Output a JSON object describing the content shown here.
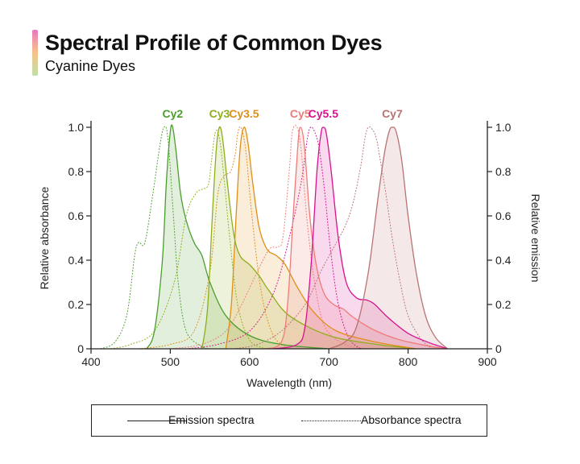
{
  "header": {
    "title": "Spectral Profile of Common Dyes",
    "subtitle": "Cyanine Dyes"
  },
  "legend": {
    "emission_label": "Emission spectra",
    "absorbance_label": "Absorbance spectra"
  },
  "colors": {
    "title_bar_gradient": [
      "#e879c0",
      "#f7c38a",
      "#bfe0a8"
    ]
  },
  "chart_data": {
    "type": "line",
    "title": "Spectral Profile of Common Dyes",
    "subtitle": "Cyanine Dyes",
    "xlabel": "Wavelength (nm)",
    "ylabel": "Relative absorbance",
    "y2label": "Relative emission",
    "xlim": [
      400,
      900
    ],
    "ylim": [
      0,
      1.0
    ],
    "x_ticks": [
      400,
      500,
      600,
      700,
      800,
      900
    ],
    "y_ticks": [
      0,
      0.2,
      0.4,
      0.6,
      0.8,
      1.0
    ],
    "y_tick_labels": [
      "0",
      "0.2",
      "0.4",
      "0.6",
      "0.8",
      "1.0"
    ],
    "grid": false,
    "legend_position": "bottom",
    "series": [
      {
        "name": "Cy2",
        "color": "#4a9e2e",
        "absorbance": [
          [
            412,
            0
          ],
          [
            430,
            0.03
          ],
          [
            445,
            0.15
          ],
          [
            455,
            0.42
          ],
          [
            460,
            0.48
          ],
          [
            468,
            0.48
          ],
          [
            478,
            0.7
          ],
          [
            487,
            0.92
          ],
          [
            492,
            1.0
          ],
          [
            497,
            0.95
          ],
          [
            504,
            0.6
          ],
          [
            510,
            0.3
          ],
          [
            520,
            0.08
          ],
          [
            540,
            0.01
          ],
          [
            550,
            0
          ]
        ],
        "emission": [
          [
            470,
            0
          ],
          [
            480,
            0.08
          ],
          [
            490,
            0.4
          ],
          [
            495,
            0.75
          ],
          [
            500,
            0.98
          ],
          [
            503,
            1.0
          ],
          [
            507,
            0.9
          ],
          [
            513,
            0.7
          ],
          [
            520,
            0.58
          ],
          [
            530,
            0.48
          ],
          [
            540,
            0.42
          ],
          [
            550,
            0.3
          ],
          [
            570,
            0.15
          ],
          [
            600,
            0.06
          ],
          [
            640,
            0.02
          ],
          [
            700,
            0
          ]
        ]
      },
      {
        "name": "Cy3",
        "color": "#8fae1b",
        "absorbance": [
          [
            425,
            0
          ],
          [
            450,
            0.02
          ],
          [
            480,
            0.08
          ],
          [
            505,
            0.3
          ],
          [
            520,
            0.6
          ],
          [
            532,
            0.7
          ],
          [
            540,
            0.72
          ],
          [
            548,
            0.74
          ],
          [
            552,
            0.85
          ],
          [
            557,
            0.98
          ],
          [
            562,
            0.95
          ],
          [
            567,
            0.8
          ],
          [
            575,
            0.5
          ],
          [
            585,
            0.2
          ],
          [
            600,
            0.04
          ],
          [
            620,
            0
          ]
        ],
        "emission": [
          [
            540,
            0
          ],
          [
            547,
            0.18
          ],
          [
            553,
            0.6
          ],
          [
            558,
            0.9
          ],
          [
            562,
            1.0
          ],
          [
            566,
            0.95
          ],
          [
            572,
            0.75
          ],
          [
            580,
            0.52
          ],
          [
            588,
            0.42
          ],
          [
            600,
            0.38
          ],
          [
            612,
            0.33
          ],
          [
            625,
            0.26
          ],
          [
            650,
            0.15
          ],
          [
            700,
            0.06
          ],
          [
            760,
            0.02
          ],
          [
            810,
            0
          ]
        ]
      },
      {
        "name": "Cy3.5",
        "color": "#de8f17",
        "absorbance": [
          [
            460,
            0
          ],
          [
            500,
            0.02
          ],
          [
            530,
            0.08
          ],
          [
            550,
            0.35
          ],
          [
            560,
            0.7
          ],
          [
            568,
            0.78
          ],
          [
            576,
            0.8
          ],
          [
            582,
            0.88
          ],
          [
            585,
            0.97
          ],
          [
            589,
            1.0
          ],
          [
            595,
            0.9
          ],
          [
            603,
            0.6
          ],
          [
            615,
            0.25
          ],
          [
            630,
            0.06
          ],
          [
            650,
            0
          ]
        ],
        "emission": [
          [
            570,
            0
          ],
          [
            577,
            0.2
          ],
          [
            583,
            0.6
          ],
          [
            588,
            0.9
          ],
          [
            593,
            1.0
          ],
          [
            598,
            0.93
          ],
          [
            604,
            0.75
          ],
          [
            612,
            0.55
          ],
          [
            622,
            0.45
          ],
          [
            634,
            0.42
          ],
          [
            645,
            0.38
          ],
          [
            660,
            0.28
          ],
          [
            680,
            0.17
          ],
          [
            710,
            0.08
          ],
          [
            760,
            0.03
          ],
          [
            810,
            0
          ]
        ]
      },
      {
        "name": "Cy5",
        "color": "#ef7b79",
        "absorbance": [
          [
            500,
            0
          ],
          [
            540,
            0.02
          ],
          [
            570,
            0.08
          ],
          [
            590,
            0.2
          ],
          [
            610,
            0.35
          ],
          [
            625,
            0.45
          ],
          [
            635,
            0.46
          ],
          [
            642,
            0.5
          ],
          [
            650,
            0.8
          ],
          [
            654,
            0.98
          ],
          [
            660,
            1.0
          ],
          [
            665,
            0.9
          ],
          [
            672,
            0.6
          ],
          [
            682,
            0.3
          ],
          [
            695,
            0.1
          ],
          [
            720,
            0.02
          ],
          [
            750,
            0
          ]
        ],
        "emission": [
          [
            620,
            0
          ],
          [
            640,
            0.03
          ],
          [
            648,
            0.2
          ],
          [
            655,
            0.6
          ],
          [
            661,
            0.92
          ],
          [
            664,
            1.0
          ],
          [
            669,
            0.92
          ],
          [
            676,
            0.6
          ],
          [
            684,
            0.38
          ],
          [
            694,
            0.25
          ],
          [
            706,
            0.2
          ],
          [
            718,
            0.18
          ],
          [
            728,
            0.15
          ],
          [
            740,
            0.12
          ],
          [
            760,
            0.08
          ],
          [
            790,
            0.04
          ],
          [
            830,
            0.01
          ],
          [
            850,
            0
          ]
        ]
      },
      {
        "name": "Cy5.5",
        "color": "#d8128f",
        "absorbance": [
          [
            520,
            0
          ],
          [
            560,
            0.02
          ],
          [
            600,
            0.08
          ],
          [
            630,
            0.25
          ],
          [
            650,
            0.5
          ],
          [
            665,
            0.75
          ],
          [
            673,
            0.95
          ],
          [
            677,
            1.0
          ],
          [
            682,
            0.98
          ],
          [
            688,
            0.9
          ],
          [
            695,
            0.7
          ],
          [
            702,
            0.45
          ],
          [
            712,
            0.2
          ],
          [
            725,
            0.05
          ],
          [
            740,
            0
          ]
        ],
        "emission": [
          [
            630,
            0
          ],
          [
            660,
            0.02
          ],
          [
            670,
            0.1
          ],
          [
            678,
            0.4
          ],
          [
            685,
            0.8
          ],
          [
            690,
            0.97
          ],
          [
            693,
            1.0
          ],
          [
            697,
            0.97
          ],
          [
            703,
            0.8
          ],
          [
            712,
            0.5
          ],
          [
            722,
            0.3
          ],
          [
            735,
            0.23
          ],
          [
            748,
            0.22
          ],
          [
            758,
            0.2
          ],
          [
            775,
            0.14
          ],
          [
            800,
            0.07
          ],
          [
            825,
            0.03
          ],
          [
            850,
            0
          ]
        ]
      },
      {
        "name": "Cy7",
        "color": "#b87373",
        "absorbance": [
          [
            580,
            0
          ],
          [
            610,
            0.02
          ],
          [
            640,
            0.08
          ],
          [
            670,
            0.2
          ],
          [
            690,
            0.35
          ],
          [
            705,
            0.45
          ],
          [
            720,
            0.55
          ],
          [
            730,
            0.65
          ],
          [
            740,
            0.82
          ],
          [
            746,
            0.96
          ],
          [
            750,
            1.0
          ],
          [
            755,
            0.99
          ],
          [
            760,
            0.95
          ],
          [
            765,
            0.85
          ],
          [
            772,
            0.7
          ],
          [
            780,
            0.5
          ],
          [
            790,
            0.3
          ],
          [
            800,
            0.15
          ],
          [
            815,
            0.05
          ],
          [
            830,
            0
          ]
        ],
        "emission": [
          [
            700,
            0
          ],
          [
            720,
            0.03
          ],
          [
            735,
            0.1
          ],
          [
            750,
            0.35
          ],
          [
            762,
            0.68
          ],
          [
            770,
            0.88
          ],
          [
            776,
            0.98
          ],
          [
            780,
            1.0
          ],
          [
            785,
            0.98
          ],
          [
            792,
            0.85
          ],
          [
            800,
            0.6
          ],
          [
            810,
            0.35
          ],
          [
            822,
            0.15
          ],
          [
            835,
            0.05
          ],
          [
            850,
            0
          ]
        ]
      }
    ]
  }
}
